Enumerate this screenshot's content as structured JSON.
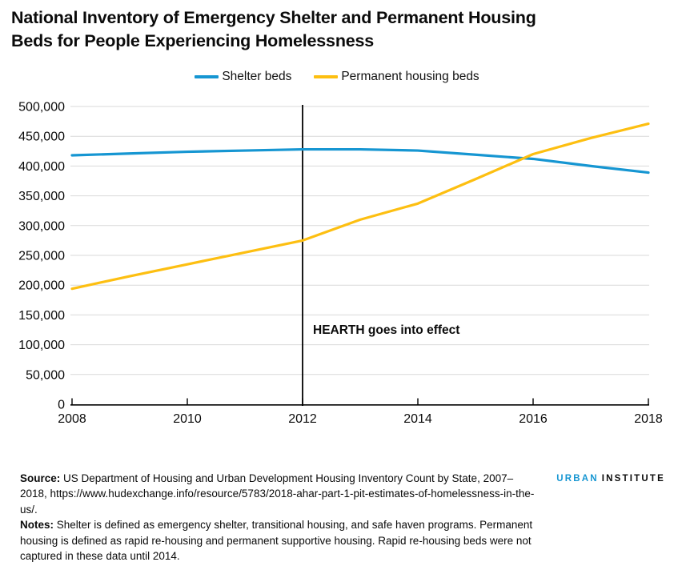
{
  "header": {
    "title_line1": "National Inventory of Emergency Shelter and Permanent Housing",
    "title_line2": "Beds for People Experiencing Homelessness"
  },
  "chart_data": {
    "type": "line",
    "title": "National Inventory of Emergency Shelter and Permanent Housing Beds for People Experiencing Homelessness",
    "x": [
      2008,
      2009,
      2010,
      2011,
      2012,
      2013,
      2014,
      2015,
      2016,
      2017,
      2018
    ],
    "series": [
      {
        "name": "Shelter beds",
        "color": "#1696d2",
        "values": [
          418000,
          421000,
          424000,
          426000,
          428000,
          428000,
          426000,
          419000,
          412000,
          400000,
          389000
        ]
      },
      {
        "name": "Permanent housing beds",
        "color": "#fdbf11",
        "values": [
          194000,
          215000,
          235000,
          255000,
          275000,
          310000,
          337000,
          378000,
          420000,
          447000,
          471000
        ]
      }
    ],
    "xlabel": "",
    "ylabel": "",
    "xlim": [
      2008,
      2018
    ],
    "ylim": [
      0,
      500000
    ],
    "xtick_values": [
      2008,
      2010,
      2012,
      2014,
      2016,
      2018
    ],
    "xtick_labels": [
      "2008",
      "2010",
      "2012",
      "2014",
      "2016",
      "2018"
    ],
    "ytick_values": [
      0,
      50000,
      100000,
      150000,
      200000,
      250000,
      300000,
      350000,
      400000,
      450000,
      500000
    ],
    "ytick_labels": [
      "0",
      "50,000",
      "100,000",
      "150,000",
      "200,000",
      "250,000",
      "300,000",
      "350,000",
      "400,000",
      "450,000",
      "500,000"
    ],
    "grid": "horizontal",
    "legend_position": "top-center",
    "annotation": {
      "label": "HEARTH goes into effect",
      "x": 2012
    },
    "colors": {
      "gridline": "#d9d9d9",
      "axis": "#000000",
      "annotation_line": "#000000",
      "tick_text": "#0b0b0b"
    }
  },
  "footer": {
    "source_label": "Source:",
    "source_text": "US Department of Housing and Urban Development Housing Inventory Count by State, 2007–2018, https://www.hudexchange.info/resource/5783/2018-ahar-part-1-pit-estimates-of-homelessness-in-the-us/.",
    "notes_label": "Notes:",
    "notes_text": "Shelter is defined as emergency shelter, transitional housing, and safe haven programs. Permanent housing is defined as rapid re-housing and permanent supportive housing. Rapid re-housing beds were not captured in these data until 2014."
  },
  "logo": {
    "part1": "URBAN",
    "part2": "INSTITUTE"
  }
}
